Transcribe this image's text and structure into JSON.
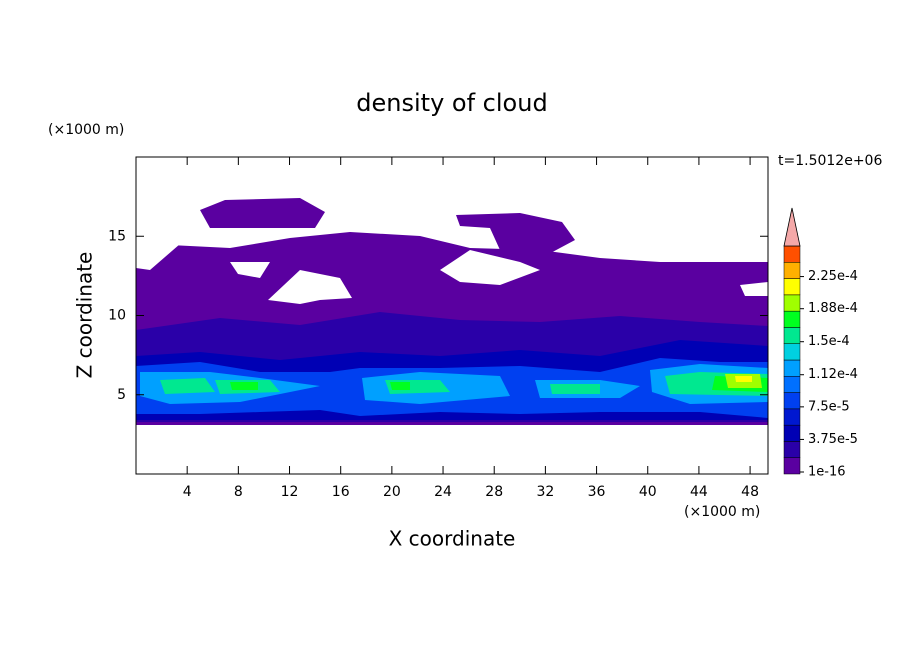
{
  "chart_data": {
    "type": "contour",
    "title": "density of cloud",
    "x_label": "X coordinate",
    "y_label": "Z coordinate",
    "x_unit": "(×1000 m)",
    "y_unit": "(×1000 m)",
    "time_label": "t=1.5012e+06",
    "xlim": [
      0,
      49.4
    ],
    "xticks": [
      4,
      8,
      12,
      16,
      20,
      24,
      28,
      32,
      36,
      40,
      44,
      48
    ],
    "ylim": [
      0,
      20
    ],
    "yticks": [
      5,
      10,
      15
    ],
    "colorbar": {
      "clim": [
        0,
        0.0002625
      ],
      "ticks": [
        1e-16,
        {
          "value": 3.75e-05,
          "label": "3.75e-5"
        },
        {
          "value": 7.5e-05,
          "label": "7.5e-5"
        },
        {
          "value": 0.000112,
          "label": "1.12e-4"
        },
        {
          "value": 0.00015,
          "label": "1.5e-4"
        },
        {
          "value": 0.000188,
          "label": "1.88e-4"
        },
        {
          "value": 0.000225,
          "label": "2.25e-4"
        }
      ],
      "colors": [
        "#5a00a0",
        "#2a00a8",
        "#0000b4",
        "#0018d0",
        "#0040f0",
        "#0070ff",
        "#00a0ff",
        "#00d0e0",
        "#00e890",
        "#00ff20",
        "#a0ff00",
        "#ffff00",
        "#ffb000",
        "#ff5000"
      ],
      "over_color": "#f4a8a8"
    }
  }
}
